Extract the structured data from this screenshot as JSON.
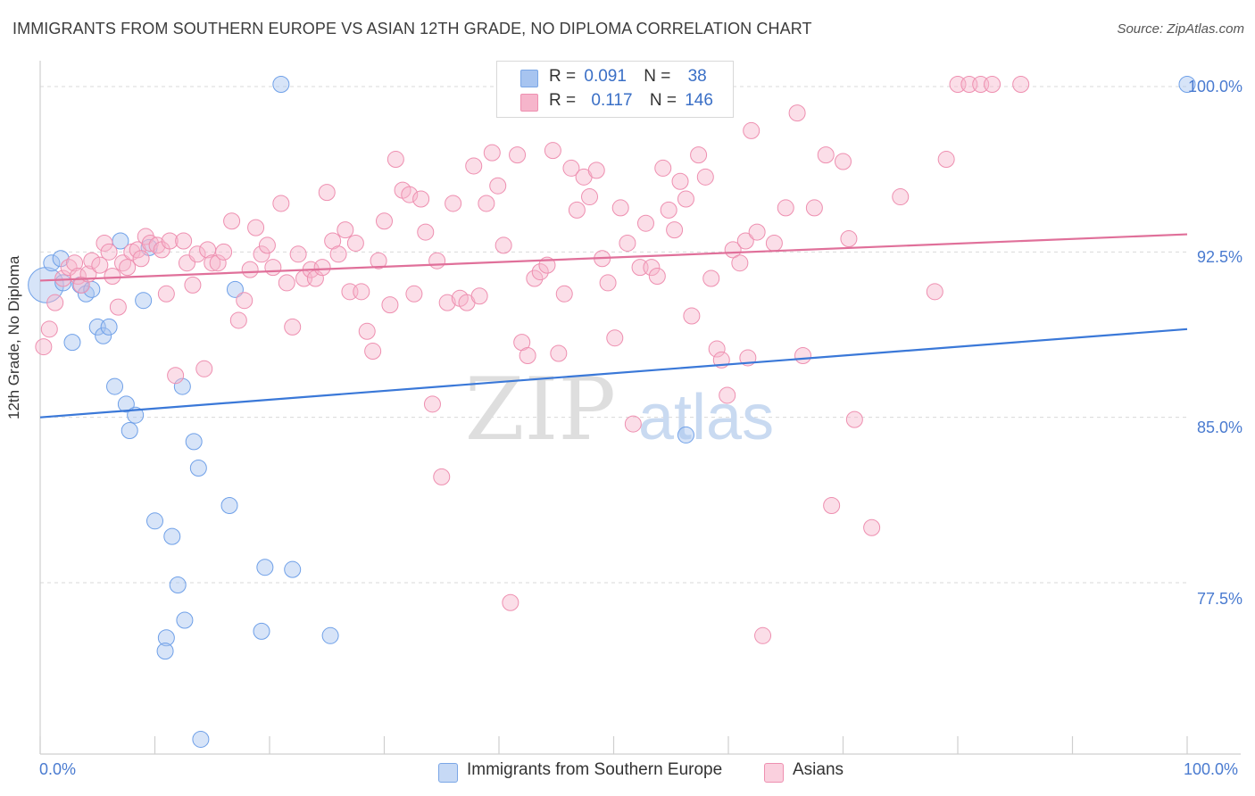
{
  "title": "IMMIGRANTS FROM SOUTHERN EUROPE VS ASIAN 12TH GRADE, NO DIPLOMA CORRELATION CHART",
  "source": "Source: ZipAtlas.com",
  "watermark": {
    "zip": "ZIP",
    "atlas": "atlas"
  },
  "legend_top": [
    {
      "r_label": "R =",
      "r_value": "0.091",
      "n_label": "N =",
      "n_value": "38",
      "color": "#a7c4f0"
    },
    {
      "r_label": "R =",
      "r_value": "0.117",
      "n_label": "N =",
      "n_value": "146",
      "color": "#f6b5cb"
    }
  ],
  "chart_data": {
    "type": "scatter",
    "title": "IMMIGRANTS FROM SOUTHERN EUROPE VS ASIAN 12TH GRADE, NO DIPLOMA CORRELATION CHART",
    "xlabel": "",
    "ylabel": "12th Grade, No Diploma",
    "xlim": [
      0,
      100
    ],
    "ylim": [
      70.0,
      100.5
    ],
    "x_tick_labels": [
      "0.0%",
      "100.0%"
    ],
    "y_ticks": [
      77.5,
      85.0,
      92.5,
      100.0
    ],
    "y_tick_labels": [
      "77.5%",
      "85.0%",
      "92.5%",
      "100.0%"
    ],
    "grid": true,
    "legend_position": "bottom",
    "series": [
      {
        "name": "Immigrants from Southern Europe",
        "color": "#6fa0e8",
        "fill": "#a7c4f0",
        "line_color": "#3a78d8",
        "trend": {
          "x0": 0,
          "y0": 85.0,
          "x1": 100,
          "y1": 89.0
        },
        "points": [
          [
            0.5,
            91.0,
            2.2
          ],
          [
            1.0,
            92.0,
            1.0
          ],
          [
            1.8,
            92.2,
            1.0
          ],
          [
            2.0,
            91.1,
            1.0
          ],
          [
            3.5,
            91.0,
            1.0
          ],
          [
            4.0,
            90.6,
            1.0
          ],
          [
            4.5,
            90.8,
            1.0
          ],
          [
            2.8,
            88.4,
            1.0
          ],
          [
            5.0,
            89.1,
            1.0
          ],
          [
            5.5,
            88.7,
            1.0
          ],
          [
            6.0,
            89.1,
            1.0
          ],
          [
            6.5,
            86.4,
            1.0
          ],
          [
            7.0,
            93.0,
            1.0
          ],
          [
            7.5,
            85.6,
            1.0
          ],
          [
            7.8,
            84.4,
            1.0
          ],
          [
            8.3,
            85.1,
            1.0
          ],
          [
            9.0,
            90.3,
            1.0
          ],
          [
            9.5,
            92.7,
            1.0
          ],
          [
            10.0,
            80.3,
            1.0
          ],
          [
            11.5,
            79.6,
            1.0
          ],
          [
            12.0,
            77.4,
            1.0
          ],
          [
            12.4,
            86.4,
            1.0
          ],
          [
            12.6,
            75.8,
            1.0
          ],
          [
            11.0,
            75.0,
            1.0
          ],
          [
            10.9,
            74.4,
            1.0
          ],
          [
            13.4,
            83.9,
            1.0
          ],
          [
            13.8,
            82.7,
            1.0
          ],
          [
            14.0,
            70.4,
            1.0
          ],
          [
            16.5,
            81.0,
            1.0
          ],
          [
            17.0,
            90.8,
            1.0
          ],
          [
            19.3,
            75.3,
            1.0
          ],
          [
            19.6,
            78.2,
            1.0
          ],
          [
            21.0,
            100.1,
            1.0
          ],
          [
            22.0,
            78.1,
            1.0
          ],
          [
            25.3,
            75.1,
            1.0
          ],
          [
            56.3,
            84.2,
            1.0
          ],
          [
            100.0,
            100.1,
            1.0
          ],
          [
            63.5,
            86.3,
            0.0
          ]
        ]
      },
      {
        "name": "Asians",
        "color": "#ee8fb0",
        "fill": "#f6b5cb",
        "line_color": "#e0709a",
        "trend": {
          "x0": 0,
          "y0": 91.2,
          "x1": 100,
          "y1": 93.3
        },
        "points": [
          [
            0.3,
            88.2,
            1.0
          ],
          [
            0.8,
            89.0,
            1.0
          ],
          [
            1.3,
            90.2,
            1.0
          ],
          [
            2.0,
            91.3,
            1.0
          ],
          [
            2.5,
            91.8,
            1.0
          ],
          [
            3.0,
            92.0,
            1.0
          ],
          [
            3.3,
            91.4,
            1.0
          ],
          [
            3.6,
            91.0,
            1.0
          ],
          [
            4.2,
            91.5,
            1.0
          ],
          [
            4.5,
            92.1,
            1.0
          ],
          [
            5.2,
            91.9,
            1.0
          ],
          [
            5.6,
            92.9,
            1.0
          ],
          [
            6.0,
            92.5,
            1.0
          ],
          [
            6.3,
            91.4,
            1.0
          ],
          [
            6.8,
            90.0,
            1.0
          ],
          [
            7.2,
            92.0,
            1.0
          ],
          [
            7.6,
            91.8,
            1.0
          ],
          [
            8.0,
            92.5,
            1.0
          ],
          [
            8.5,
            92.6,
            1.0
          ],
          [
            8.8,
            92.2,
            1.0
          ],
          [
            9.2,
            93.2,
            1.0
          ],
          [
            9.6,
            92.9,
            1.0
          ],
          [
            10.2,
            92.8,
            1.0
          ],
          [
            10.6,
            92.6,
            1.0
          ],
          [
            11.0,
            90.6,
            1.0
          ],
          [
            11.3,
            93.0,
            1.0
          ],
          [
            11.8,
            86.9,
            1.0
          ],
          [
            12.5,
            93.0,
            1.0
          ],
          [
            12.8,
            92.0,
            1.0
          ],
          [
            13.3,
            91.0,
            1.0
          ],
          [
            13.7,
            92.4,
            1.0
          ],
          [
            14.3,
            87.2,
            1.0
          ],
          [
            14.6,
            92.6,
            1.0
          ],
          [
            15.0,
            92.0,
            1.0
          ],
          [
            15.5,
            92.0,
            1.0
          ],
          [
            16.0,
            92.5,
            1.0
          ],
          [
            16.7,
            93.9,
            1.0
          ],
          [
            17.3,
            89.4,
            1.0
          ],
          [
            17.8,
            90.3,
            1.0
          ],
          [
            18.3,
            91.7,
            1.0
          ],
          [
            18.8,
            93.6,
            1.0
          ],
          [
            19.3,
            92.4,
            1.0
          ],
          [
            19.8,
            92.8,
            1.0
          ],
          [
            20.3,
            91.8,
            1.0
          ],
          [
            21.0,
            94.7,
            1.0
          ],
          [
            21.5,
            91.1,
            1.0
          ],
          [
            22.0,
            89.1,
            1.0
          ],
          [
            22.5,
            92.4,
            1.0
          ],
          [
            23.0,
            91.3,
            1.0
          ],
          [
            23.6,
            91.7,
            1.0
          ],
          [
            24.0,
            91.3,
            1.0
          ],
          [
            24.6,
            91.8,
            1.0
          ],
          [
            25.0,
            95.2,
            1.0
          ],
          [
            25.5,
            93.0,
            1.0
          ],
          [
            26.0,
            92.4,
            1.0
          ],
          [
            26.6,
            93.5,
            1.0
          ],
          [
            27.0,
            90.7,
            1.0
          ],
          [
            27.5,
            92.9,
            1.0
          ],
          [
            28.0,
            90.7,
            1.0
          ],
          [
            28.5,
            88.9,
            1.0
          ],
          [
            29.0,
            88.0,
            1.0
          ],
          [
            29.5,
            92.1,
            1.0
          ],
          [
            30.0,
            93.9,
            1.0
          ],
          [
            30.5,
            90.1,
            1.0
          ],
          [
            31.0,
            96.7,
            1.0
          ],
          [
            31.6,
            95.3,
            1.0
          ],
          [
            32.2,
            95.1,
            1.0
          ],
          [
            32.6,
            90.6,
            1.0
          ],
          [
            33.2,
            94.9,
            1.0
          ],
          [
            33.6,
            93.4,
            1.0
          ],
          [
            34.2,
            85.6,
            1.0
          ],
          [
            34.6,
            92.1,
            1.0
          ],
          [
            35.0,
            82.3,
            1.0
          ],
          [
            35.5,
            90.2,
            1.0
          ],
          [
            36.0,
            94.7,
            1.0
          ],
          [
            36.6,
            90.4,
            1.0
          ],
          [
            37.2,
            90.2,
            1.0
          ],
          [
            37.8,
            96.4,
            1.0
          ],
          [
            38.3,
            90.5,
            1.0
          ],
          [
            38.9,
            94.7,
            1.0
          ],
          [
            39.4,
            97.0,
            1.0
          ],
          [
            39.9,
            95.5,
            1.0
          ],
          [
            40.4,
            92.8,
            1.0
          ],
          [
            41.0,
            76.6,
            1.0
          ],
          [
            41.6,
            96.9,
            1.0
          ],
          [
            42.0,
            88.4,
            1.0
          ],
          [
            42.5,
            87.8,
            1.0
          ],
          [
            43.1,
            91.3,
            1.0
          ],
          [
            43.6,
            91.6,
            1.0
          ],
          [
            44.2,
            91.9,
            1.0
          ],
          [
            44.7,
            97.1,
            1.0
          ],
          [
            45.2,
            87.9,
            1.0
          ],
          [
            45.7,
            90.6,
            1.0
          ],
          [
            46.3,
            96.3,
            1.0
          ],
          [
            46.8,
            94.4,
            1.0
          ],
          [
            47.4,
            95.9,
            1.0
          ],
          [
            47.9,
            95.0,
            1.0
          ],
          [
            48.5,
            96.2,
            1.0
          ],
          [
            49.0,
            92.2,
            1.0
          ],
          [
            49.5,
            91.1,
            1.0
          ],
          [
            50.1,
            88.6,
            1.0
          ],
          [
            50.6,
            94.5,
            1.0
          ],
          [
            51.2,
            92.9,
            1.0
          ],
          [
            51.7,
            84.7,
            1.0
          ],
          [
            52.3,
            91.8,
            1.0
          ],
          [
            52.8,
            93.8,
            1.0
          ],
          [
            53.3,
            91.8,
            1.0
          ],
          [
            53.8,
            91.4,
            1.0
          ],
          [
            54.3,
            96.3,
            1.0
          ],
          [
            54.8,
            94.4,
            1.0
          ],
          [
            55.3,
            93.5,
            1.0
          ],
          [
            55.8,
            95.7,
            1.0
          ],
          [
            56.3,
            94.9,
            1.0
          ],
          [
            56.8,
            89.6,
            1.0
          ],
          [
            57.4,
            96.9,
            1.0
          ],
          [
            58.0,
            95.9,
            1.0
          ],
          [
            58.5,
            91.3,
            1.0
          ],
          [
            59.0,
            88.1,
            1.0
          ],
          [
            59.4,
            87.6,
            1.0
          ],
          [
            59.9,
            86.0,
            1.0
          ],
          [
            60.4,
            92.6,
            1.0
          ],
          [
            61.0,
            92.0,
            1.0
          ],
          [
            61.5,
            93.0,
            1.0
          ],
          [
            62.0,
            98.0,
            1.0
          ],
          [
            62.5,
            93.4,
            1.0
          ],
          [
            63.0,
            75.1,
            1.0
          ],
          [
            64.0,
            92.9,
            1.0
          ],
          [
            65.0,
            94.5,
            1.0
          ],
          [
            66.0,
            98.8,
            1.0
          ],
          [
            66.5,
            87.8,
            1.0
          ],
          [
            67.5,
            94.5,
            1.0
          ],
          [
            68.5,
            96.9,
            1.0
          ],
          [
            69.0,
            81.0,
            1.0
          ],
          [
            70.0,
            96.6,
            1.0
          ],
          [
            70.5,
            93.1,
            1.0
          ],
          [
            71.0,
            84.9,
            1.0
          ],
          [
            72.5,
            80.0,
            1.0
          ],
          [
            75.0,
            95.0,
            1.0
          ],
          [
            78.0,
            90.7,
            1.0
          ],
          [
            79.0,
            96.7,
            1.0
          ],
          [
            80.0,
            100.1,
            1.0
          ],
          [
            81.0,
            100.1,
            1.0
          ],
          [
            82.0,
            100.1,
            1.0
          ],
          [
            83.0,
            100.1,
            1.0
          ],
          [
            85.5,
            100.1,
            1.0
          ],
          [
            61.7,
            87.7,
            1.0
          ]
        ]
      }
    ]
  },
  "legend_bottom": [
    {
      "label": "Immigrants from Southern Europe",
      "color": "#a7c4f0"
    },
    {
      "label": "Asians",
      "color": "#f6b5cb"
    }
  ]
}
